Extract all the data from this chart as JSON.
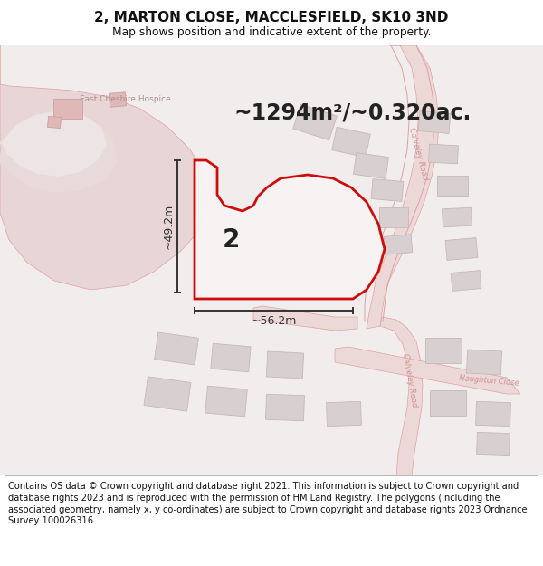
{
  "title": "2, MARTON CLOSE, MACCLESFIELD, SK10 3ND",
  "subtitle": "Map shows position and indicative extent of the property.",
  "area_text": "~1294m²/~0.320ac.",
  "dim_width": "~56.2m",
  "dim_height": "~49.2m",
  "label": "2",
  "footer": "Contains OS data © Crown copyright and database right 2021. This information is subject to Crown copyright and database rights 2023 and is reproduced with the permission of HM Land Registry. The polygons (including the associated geometry, namely x, y co-ordinates) are subject to Crown copyright and database rights 2023 Ordnance Survey 100026316.",
  "bg_map": "#f2eded",
  "hospice_fill": "#e8d5d5",
  "hospice_bldg": "#e0b8b8",
  "road_fill": "#edd8d8",
  "road_line": "#e0a0a0",
  "building_fill": "#d8d0d0",
  "building_edge": "#c8b8b8",
  "plot_edge": "#cc0000",
  "plot_fill": "#f8f4f4",
  "dim_color": "#333333",
  "label_color": "#222222",
  "title_color": "#111111",
  "road_label": "#d09090",
  "hospice_label": "#b09090",
  "white_bg": "#ffffff"
}
